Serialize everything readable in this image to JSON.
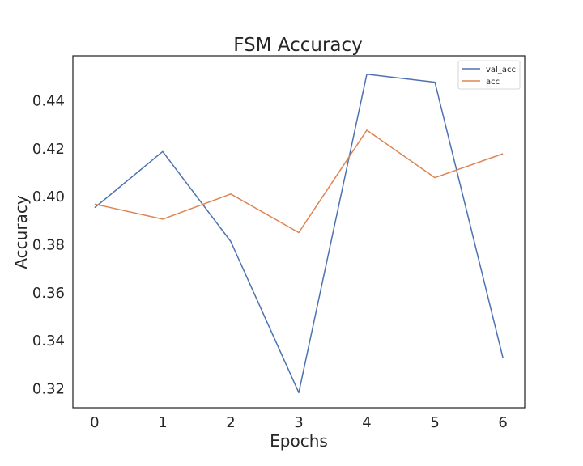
{
  "chart_data": {
    "type": "line",
    "title": "FSM Accuracy",
    "xlabel": "Epochs",
    "ylabel": "Accuracy",
    "x": [
      0,
      1,
      2,
      3,
      4,
      5,
      6
    ],
    "xticks": [
      "0",
      "1",
      "2",
      "3",
      "4",
      "5",
      "6"
    ],
    "yticks": [
      "0.32",
      "0.34",
      "0.36",
      "0.38",
      "0.40",
      "0.42",
      "0.44"
    ],
    "xlim": [
      -0.32,
      6.32
    ],
    "ylim": [
      0.3117,
      0.4584
    ],
    "grid": false,
    "legend_position": "top-right",
    "series": [
      {
        "name": "val_acc",
        "color": "#4c72b0",
        "values": [
          0.3951,
          0.4185,
          0.381,
          0.318,
          0.4507,
          0.4474,
          0.3325
        ]
      },
      {
        "name": "acc",
        "color": "#dd8452",
        "values": [
          0.3966,
          0.3903,
          0.4008,
          0.3847,
          0.4274,
          0.4076,
          0.4176
        ]
      }
    ]
  }
}
